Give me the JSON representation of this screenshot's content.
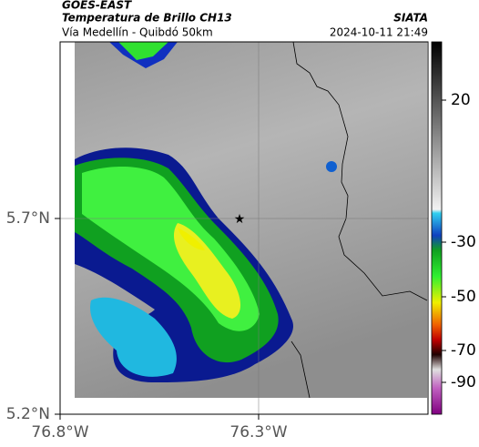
{
  "header": {
    "source": "GOES-EAST",
    "title": "Temperatura de Brillo CH13",
    "subtitle": "Vía Medellín - Quibdó 50km",
    "organization": "SIATA",
    "timestamp": "2024-10-11 21:49"
  },
  "map": {
    "lat_labels": [
      "5.7°N",
      "5.2°N"
    ],
    "lon_labels": [
      "76.8°W",
      "76.3°W"
    ]
  },
  "colorbar": {
    "ticks": [
      "20",
      "-30",
      "-50",
      "-70",
      "-90"
    ]
  }
}
